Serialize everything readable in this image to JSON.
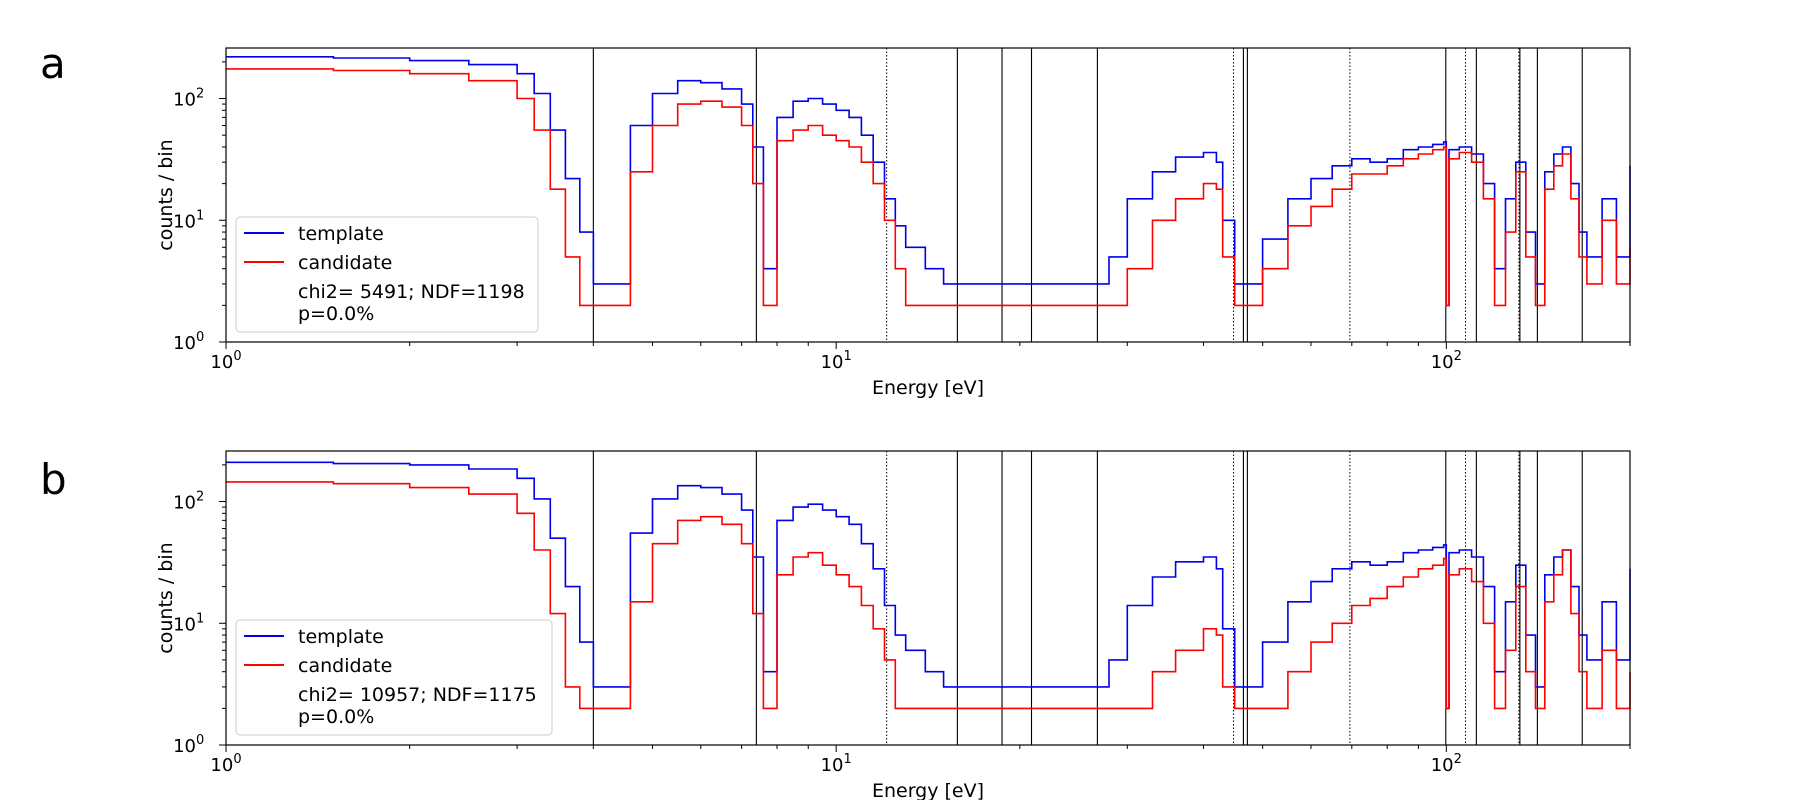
{
  "chart_data": [
    {
      "panel_label": "a",
      "type": "line",
      "xscale": "log",
      "yscale": "log",
      "xlim": [
        1,
        200
      ],
      "ylim": [
        1,
        260
      ],
      "xlabel": "Energy [eV]",
      "ylabel": "counts / bin",
      "x_ticks": [
        {
          "value": 1,
          "base": "10",
          "exp": "0"
        },
        {
          "value": 10,
          "base": "10",
          "exp": "1"
        },
        {
          "value": 100,
          "base": "10",
          "exp": "2"
        }
      ],
      "y_ticks": [
        {
          "value": 1,
          "base": "10",
          "exp": "0"
        },
        {
          "value": 10,
          "base": "10",
          "exp": "1"
        },
        {
          "value": 100,
          "base": "10",
          "exp": "2"
        }
      ],
      "vlines_solid": [
        4.0,
        7.4,
        15.8,
        18.7,
        20.9,
        26.8,
        46.5,
        47.2,
        99.8,
        112.0,
        132.0,
        141.0,
        167.0
      ],
      "vlines_dotted": [
        12.1,
        44.8,
        69.5,
        107.5,
        131.5
      ],
      "legend": {
        "placement": "lower-left",
        "entries": [
          {
            "label": "template",
            "color": "#0000ee"
          },
          {
            "label": "candidate",
            "color": "#ff0000"
          }
        ],
        "stats_line1": "chi2= 5491; NDF=1198",
        "stats_line2": "p=0.0%"
      },
      "series": [
        {
          "name": "template",
          "color": "#0000ee",
          "x": [
            1.0,
            1.5,
            2.0,
            2.5,
            3.0,
            3.2,
            3.4,
            3.6,
            3.8,
            4.0,
            4.3,
            4.6,
            5.0,
            5.5,
            6.0,
            6.5,
            7.0,
            7.3,
            7.6,
            8.0,
            8.5,
            9.0,
            9.5,
            10.0,
            10.5,
            11.0,
            11.5,
            12.0,
            12.5,
            13.0,
            14.0,
            15.0,
            16.0,
            18.0,
            20.0,
            23.0,
            26.0,
            28.0,
            30.0,
            33.0,
            36.0,
            40.0,
            42.0,
            43.0,
            45.0,
            47.0,
            50.0,
            55.0,
            60.0,
            65.0,
            70.0,
            75.0,
            80.0,
            85.0,
            90.0,
            95.0,
            99.0,
            100.0,
            101.0,
            105.0,
            110.0,
            115.0,
            120.0,
            125.0,
            130.0,
            135.0,
            140.0,
            145.0,
            150.0,
            155.0,
            160.0,
            165.0,
            170.0,
            180.0,
            190.0,
            200.0
          ],
          "values": [
            220,
            215,
            205,
            190,
            160,
            110,
            55,
            22,
            8,
            3,
            3,
            60,
            110,
            140,
            135,
            120,
            90,
            40,
            4,
            70,
            95,
            100,
            90,
            80,
            70,
            50,
            30,
            15,
            9,
            6,
            4,
            3,
            3,
            3,
            3,
            3,
            3,
            5,
            15,
            25,
            33,
            36,
            30,
            10,
            3,
            3,
            7,
            15,
            22,
            28,
            32,
            30,
            32,
            38,
            40,
            42,
            44,
            2,
            38,
            40,
            35,
            20,
            4,
            15,
            30,
            8,
            3,
            25,
            35,
            40,
            20,
            8,
            5,
            15,
            5,
            28
          ]
        },
        {
          "name": "candidate",
          "color": "#ff0000",
          "x": [
            1.0,
            1.5,
            2.0,
            2.5,
            3.0,
            3.2,
            3.4,
            3.6,
            3.8,
            4.0,
            4.3,
            4.6,
            5.0,
            5.5,
            6.0,
            6.5,
            7.0,
            7.3,
            7.6,
            8.0,
            8.5,
            9.0,
            9.5,
            10.0,
            10.5,
            11.0,
            11.5,
            12.0,
            12.5,
            13.0,
            14.0,
            15.0,
            16.0,
            18.0,
            20.0,
            23.0,
            26.0,
            28.0,
            30.0,
            33.0,
            36.0,
            40.0,
            42.0,
            43.0,
            45.0,
            47.0,
            50.0,
            55.0,
            60.0,
            65.0,
            70.0,
            75.0,
            80.0,
            85.0,
            90.0,
            95.0,
            99.0,
            100.0,
            101.0,
            105.0,
            110.0,
            115.0,
            120.0,
            125.0,
            130.0,
            135.0,
            140.0,
            145.0,
            150.0,
            155.0,
            160.0,
            165.0,
            170.0,
            180.0,
            190.0,
            200.0
          ],
          "values": [
            175,
            170,
            160,
            140,
            100,
            55,
            18,
            5,
            2,
            2,
            2,
            25,
            60,
            90,
            95,
            85,
            60,
            20,
            2,
            45,
            55,
            60,
            50,
            45,
            40,
            30,
            20,
            10,
            4,
            2,
            2,
            2,
            2,
            2,
            2,
            2,
            2,
            2,
            4,
            10,
            15,
            20,
            18,
            5,
            2,
            2,
            4,
            9,
            13,
            18,
            24,
            24,
            28,
            32,
            35,
            38,
            40,
            2,
            32,
            36,
            30,
            15,
            2,
            8,
            25,
            5,
            2,
            18,
            28,
            35,
            15,
            5,
            3,
            10,
            3,
            6
          ]
        }
      ]
    },
    {
      "panel_label": "b",
      "type": "line",
      "xscale": "log",
      "yscale": "log",
      "xlim": [
        1,
        200
      ],
      "ylim": [
        1,
        260
      ],
      "xlabel": "Energy [eV]",
      "ylabel": "counts / bin",
      "x_ticks": [
        {
          "value": 1,
          "base": "10",
          "exp": "0"
        },
        {
          "value": 10,
          "base": "10",
          "exp": "1"
        },
        {
          "value": 100,
          "base": "10",
          "exp": "2"
        }
      ],
      "y_ticks": [
        {
          "value": 1,
          "base": "10",
          "exp": "0"
        },
        {
          "value": 10,
          "base": "10",
          "exp": "1"
        },
        {
          "value": 100,
          "base": "10",
          "exp": "2"
        }
      ],
      "vlines_solid": [
        4.0,
        7.4,
        15.8,
        18.7,
        20.9,
        26.8,
        46.5,
        47.2,
        99.8,
        112.0,
        132.0,
        141.0,
        167.0
      ],
      "vlines_dotted": [
        12.1,
        44.8,
        69.5,
        107.5,
        131.5
      ],
      "legend": {
        "placement": "lower-left",
        "entries": [
          {
            "label": "template",
            "color": "#0000ee"
          },
          {
            "label": "candidate",
            "color": "#ff0000"
          }
        ],
        "stats_line1": "chi2= 10957; NDF=1175",
        "stats_line2": "p=0.0%"
      },
      "series": [
        {
          "name": "template",
          "color": "#0000ee",
          "x": [
            1.0,
            1.5,
            2.0,
            2.5,
            3.0,
            3.2,
            3.4,
            3.6,
            3.8,
            4.0,
            4.3,
            4.6,
            5.0,
            5.5,
            6.0,
            6.5,
            7.0,
            7.3,
            7.6,
            8.0,
            8.5,
            9.0,
            9.5,
            10.0,
            10.5,
            11.0,
            11.5,
            12.0,
            12.5,
            13.0,
            14.0,
            15.0,
            16.0,
            18.0,
            20.0,
            23.0,
            26.0,
            28.0,
            30.0,
            33.0,
            36.0,
            40.0,
            42.0,
            43.0,
            45.0,
            47.0,
            50.0,
            55.0,
            60.0,
            65.0,
            70.0,
            75.0,
            80.0,
            85.0,
            90.0,
            95.0,
            99.0,
            100.0,
            101.0,
            105.0,
            110.0,
            115.0,
            120.0,
            125.0,
            130.0,
            135.0,
            140.0,
            145.0,
            150.0,
            155.0,
            160.0,
            165.0,
            170.0,
            180.0,
            190.0,
            200.0
          ],
          "values": [
            210,
            205,
            200,
            185,
            155,
            105,
            50,
            20,
            7,
            3,
            3,
            55,
            105,
            135,
            130,
            115,
            85,
            35,
            4,
            70,
            90,
            95,
            85,
            75,
            65,
            45,
            28,
            14,
            8,
            6,
            4,
            3,
            3,
            3,
            3,
            3,
            3,
            5,
            14,
            24,
            32,
            35,
            28,
            9,
            3,
            3,
            7,
            15,
            22,
            28,
            32,
            30,
            32,
            38,
            40,
            42,
            44,
            2,
            38,
            40,
            35,
            20,
            4,
            15,
            30,
            8,
            3,
            25,
            35,
            40,
            20,
            8,
            5,
            15,
            5,
            28
          ]
        },
        {
          "name": "candidate",
          "color": "#ff0000",
          "x": [
            1.0,
            1.5,
            2.0,
            2.5,
            3.0,
            3.2,
            3.4,
            3.6,
            3.8,
            4.0,
            4.3,
            4.6,
            5.0,
            5.5,
            6.0,
            6.5,
            7.0,
            7.3,
            7.6,
            8.0,
            8.5,
            9.0,
            9.5,
            10.0,
            10.5,
            11.0,
            11.5,
            12.0,
            12.5,
            13.0,
            14.0,
            15.0,
            16.0,
            18.0,
            20.0,
            23.0,
            26.0,
            28.0,
            30.0,
            33.0,
            36.0,
            40.0,
            42.0,
            43.0,
            45.0,
            47.0,
            50.0,
            55.0,
            60.0,
            65.0,
            70.0,
            75.0,
            80.0,
            85.0,
            90.0,
            95.0,
            99.0,
            100.0,
            101.0,
            105.0,
            110.0,
            115.0,
            120.0,
            125.0,
            130.0,
            135.0,
            140.0,
            145.0,
            150.0,
            155.0,
            160.0,
            165.0,
            170.0,
            180.0,
            190.0,
            200.0
          ],
          "values": [
            145,
            140,
            130,
            115,
            80,
            40,
            12,
            3,
            2,
            2,
            2,
            15,
            45,
            70,
            75,
            65,
            45,
            12,
            2,
            25,
            35,
            38,
            30,
            25,
            20,
            14,
            9,
            5,
            2,
            2,
            2,
            2,
            2,
            2,
            2,
            2,
            2,
            2,
            2,
            4,
            6,
            9,
            8,
            3,
            2,
            2,
            2,
            4,
            7,
            10,
            14,
            16,
            20,
            24,
            28,
            30,
            34,
            2,
            25,
            28,
            22,
            10,
            2,
            6,
            20,
            4,
            2,
            15,
            25,
            40,
            12,
            4,
            2,
            6,
            2,
            4
          ]
        }
      ]
    }
  ]
}
